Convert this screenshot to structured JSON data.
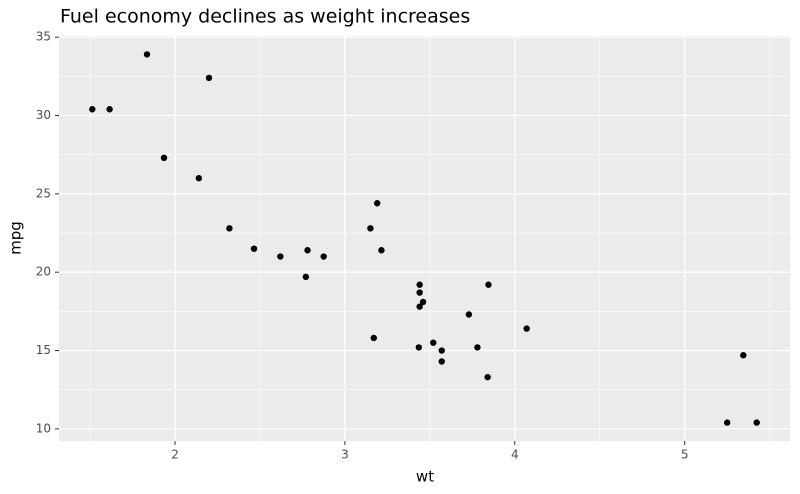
{
  "chart_data": {
    "type": "scatter",
    "title": "Fuel economy declines as weight increases",
    "x_label": "wt",
    "y_label": "mpg",
    "color": "#000000",
    "x": [
      2.62,
      2.875,
      2.32,
      3.215,
      3.44,
      3.46,
      3.57,
      3.19,
      3.15,
      3.44,
      3.44,
      4.07,
      3.73,
      3.78,
      5.25,
      5.424,
      5.345,
      2.2,
      1.615,
      1.835,
      2.465,
      3.52,
      3.435,
      3.84,
      3.845,
      1.935,
      2.14,
      1.513,
      3.17,
      2.77,
      3.57,
      2.78
    ],
    "values": [
      21.0,
      21.0,
      22.8,
      21.4,
      18.7,
      18.1,
      14.3,
      24.4,
      22.8,
      19.2,
      17.8,
      16.4,
      17.3,
      15.2,
      10.4,
      10.4,
      14.7,
      32.4,
      30.4,
      33.9,
      21.5,
      15.5,
      15.2,
      13.3,
      19.2,
      27.3,
      26.0,
      30.4,
      15.8,
      19.7,
      15.0,
      21.4
    ],
    "xlim": [
      1.317,
      5.62
    ],
    "ylim": [
      9.225,
      35.075
    ],
    "xticks": [
      2,
      3,
      4,
      5
    ],
    "yticks": [
      10,
      15,
      20,
      25,
      30,
      35
    ],
    "minor_xticks": [
      1.5,
      2.5,
      3.5,
      4.5,
      5.5
    ],
    "minor_yticks": [
      12.5,
      17.5,
      22.5,
      27.5,
      32.5
    ],
    "grid": true
  }
}
